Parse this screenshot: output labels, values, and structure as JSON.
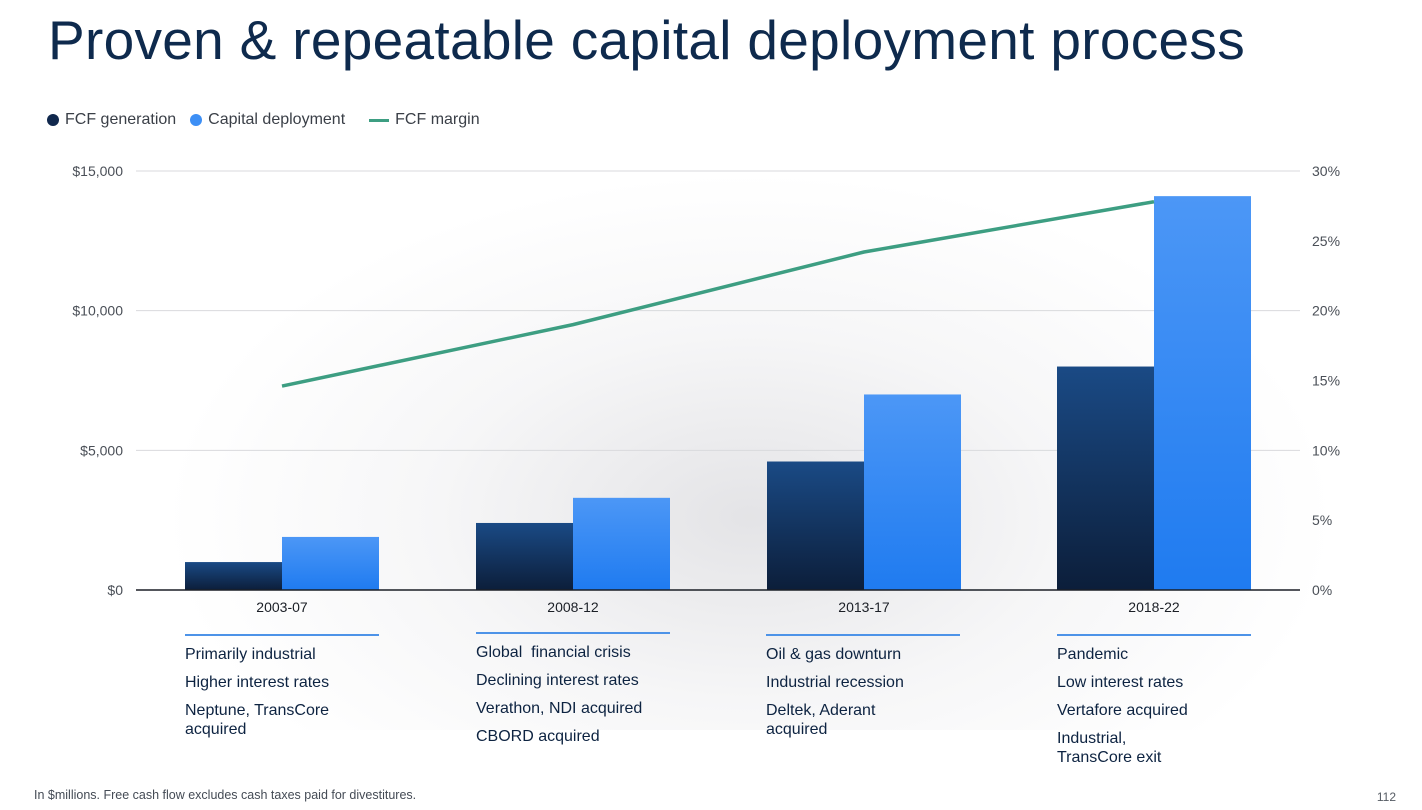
{
  "title": "Proven & repeatable capital deployment process",
  "legend": {
    "fcf_generation": "FCF generation",
    "capital_deployment": "Capital deployment",
    "fcf_margin": "FCF margin"
  },
  "colors": {
    "fcf_generation": "#10284d",
    "capital_deployment": "#3d8ff5",
    "fcf_margin": "#3d9e82",
    "rule": "#4d93e8"
  },
  "chart_data": {
    "type": "bar",
    "categories": [
      "2003-07",
      "2008-12",
      "2013-17",
      "2018-22"
    ],
    "series": [
      {
        "name": "FCF generation",
        "values": [
          1000,
          2400,
          4600,
          8000
        ]
      },
      {
        "name": "Capital deployment",
        "values": [
          1900,
          3300,
          7000,
          14100
        ]
      },
      {
        "name": "FCF margin",
        "type": "line",
        "axis": "right",
        "values": [
          14.6,
          19.0,
          24.2,
          27.8
        ]
      }
    ],
    "ylim_left": [
      0,
      15000
    ],
    "yticks_left": [
      "$0",
      "$5,000",
      "$10,000",
      "$15,000"
    ],
    "ylim_right": [
      0,
      30
    ],
    "yticks_right": [
      "0%",
      "5%",
      "10%",
      "15%",
      "20%",
      "25%",
      "30%"
    ],
    "grid": true,
    "legend_position": "top-left"
  },
  "annotations": [
    {
      "items": [
        "Primarily industrial",
        "Higher interest rates",
        "Neptune, TransCore acquired"
      ]
    },
    {
      "items": [
        "Global  financial crisis",
        "Declining interest rates",
        "Verathon, NDI acquired",
        "CBORD acquired"
      ]
    },
    {
      "items": [
        "Oil & gas downturn",
        "Industrial recession",
        "Deltek, Aderant acquired"
      ]
    },
    {
      "items": [
        "Pandemic",
        "Low interest rates",
        "Vertafore acquired",
        "Industrial, TransCore exit"
      ]
    }
  ],
  "footnote": "In $millions. Free cash flow excludes cash taxes paid for divestitures.",
  "page_number": "112"
}
